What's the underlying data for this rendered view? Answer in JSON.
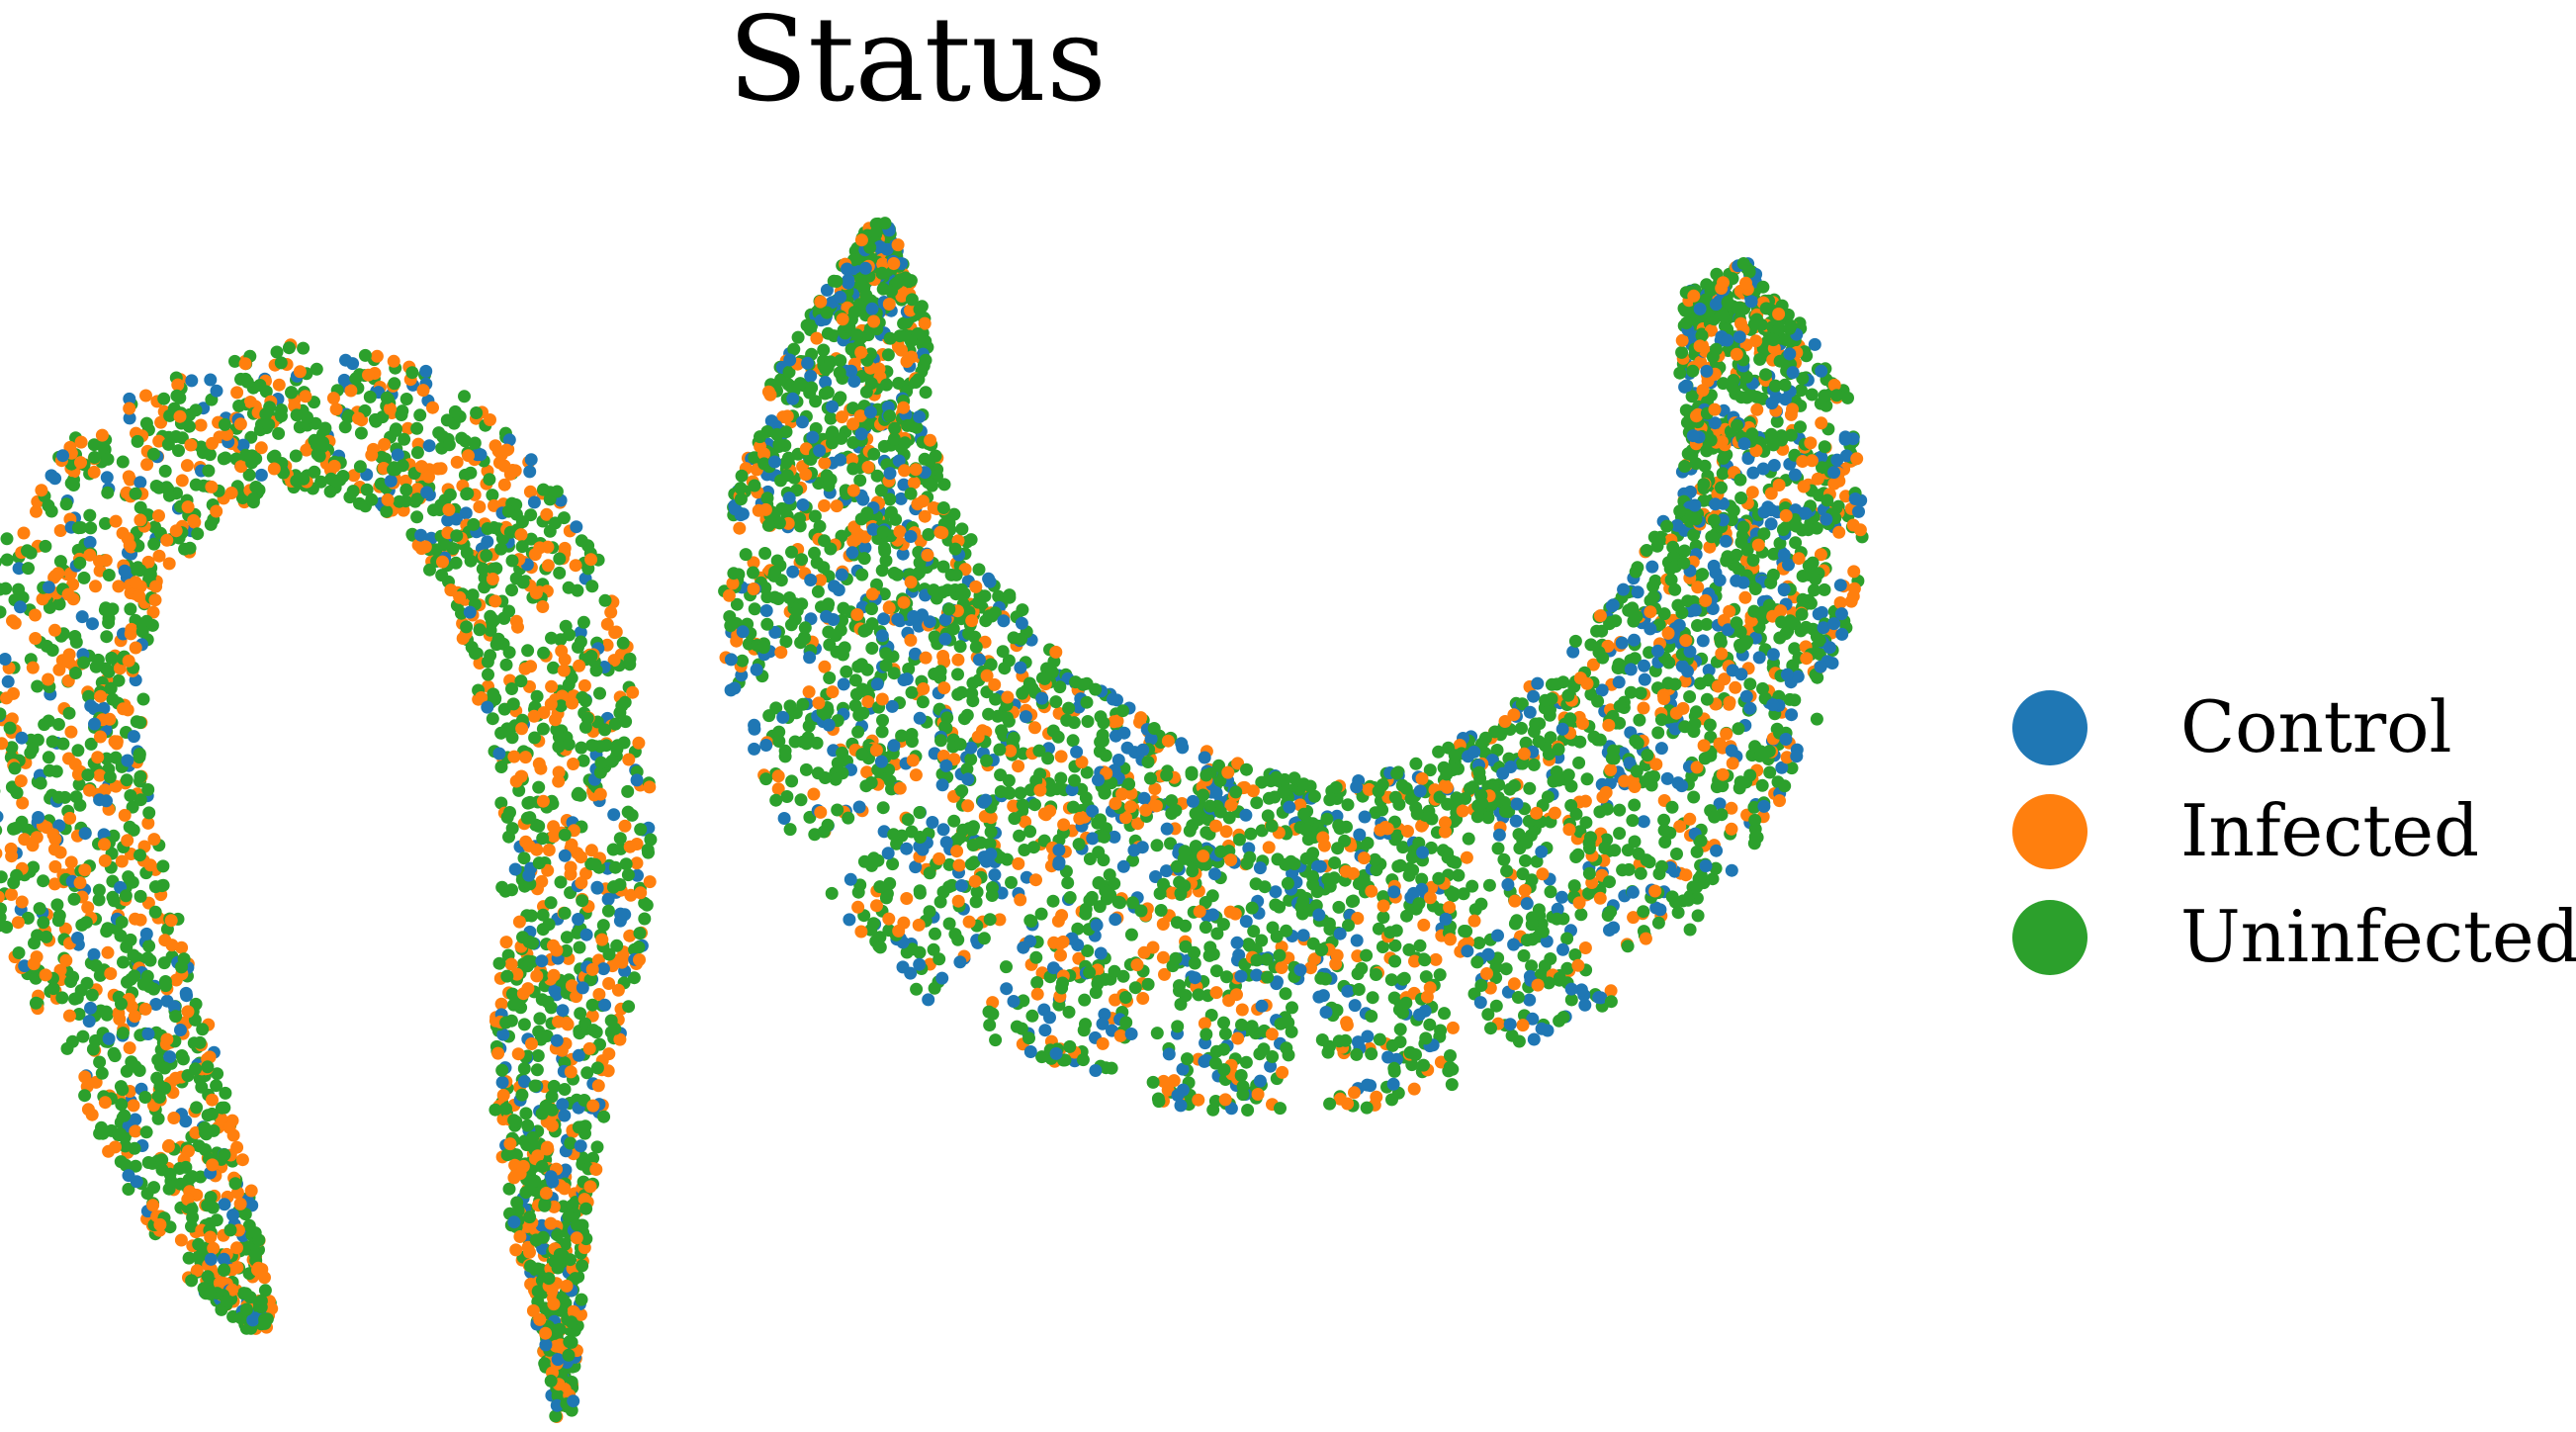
{
  "chart_data": {
    "type": "scatter",
    "title": "Status",
    "xlabel": "",
    "ylabel": "",
    "axes_visible": false,
    "grid": false,
    "legend_placement": "right",
    "series": [
      {
        "name": "Control",
        "color": "#1f77b4"
      },
      {
        "name": "Infected",
        "color": "#ff7f0e"
      },
      {
        "name": "Uninfected",
        "color": "#2ca02c"
      }
    ],
    "clusters": [
      {
        "shape": "inverted-U arc (left cluster)",
        "composition": {
          "Control": 0.12,
          "Infected": 0.33,
          "Uninfected": 0.55
        }
      },
      {
        "shape": "crescent / bowl (right cluster)",
        "composition": {
          "Control": 0.2,
          "Infected": 0.22,
          "Uninfected": 0.58
        }
      }
    ]
  }
}
